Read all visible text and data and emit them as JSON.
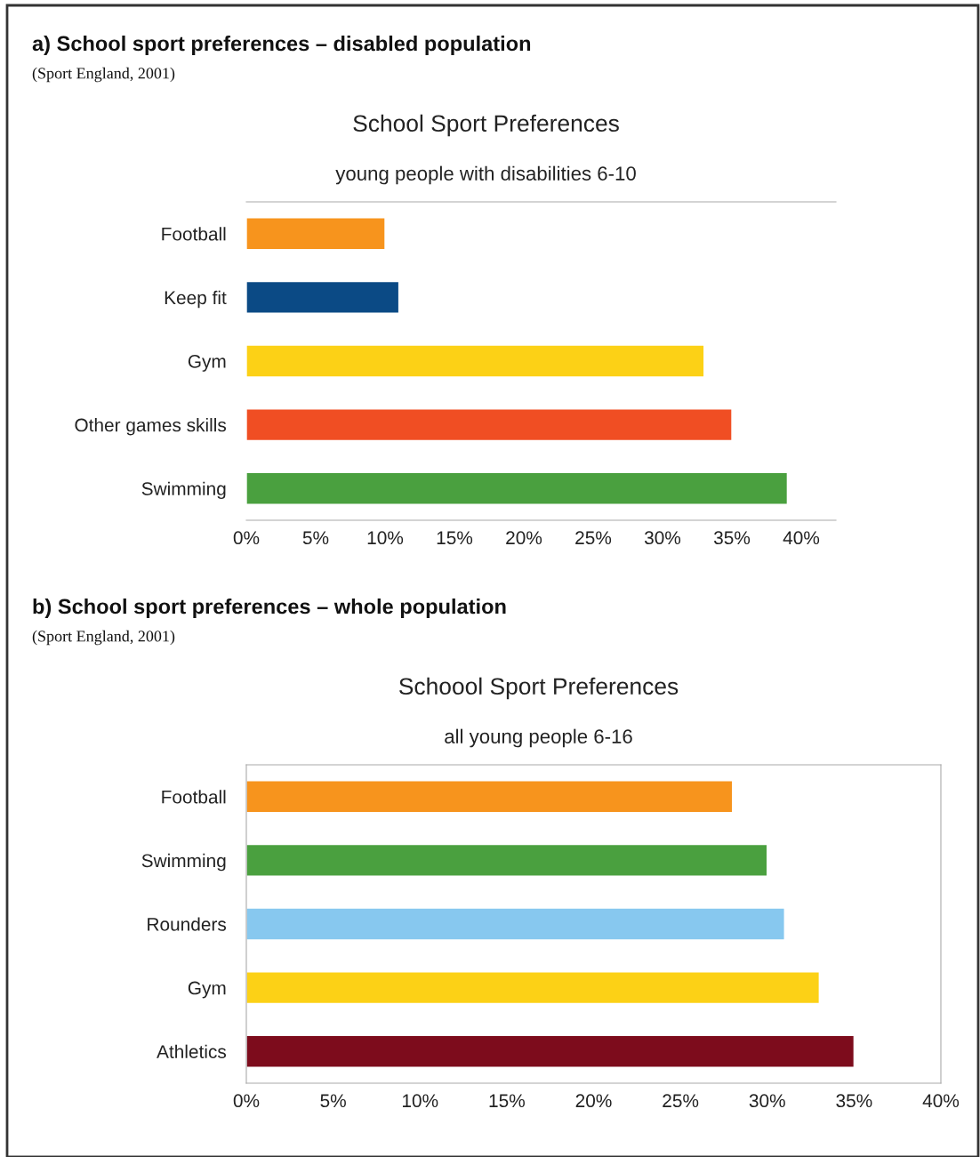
{
  "chart_data": [
    {
      "type": "bar",
      "orientation": "horizontal",
      "title": "School Sport Preferences",
      "subtitle": "young people with disabilities 6-10",
      "annotations": [
        "a) School sport preferences – disabled population",
        "(Sport England, 2001)"
      ],
      "categories": [
        "Football",
        "Keep fit",
        "Gym",
        "Other games skills",
        "Swimming"
      ],
      "values": [
        10,
        11,
        33,
        35,
        39
      ],
      "colors": [
        "#f7941d",
        "#0b4a85",
        "#fcd116",
        "#f04e23",
        "#4aa03f"
      ],
      "xlim": [
        0,
        42.5
      ],
      "xticks": [
        {
          "value": 0,
          "label": "0%"
        },
        {
          "value": 5,
          "label": "5%"
        },
        {
          "value": 10,
          "label": "10%"
        },
        {
          "value": 15,
          "label": "15%"
        },
        {
          "value": 20,
          "label": "20%"
        },
        {
          "value": 25,
          "label": "25%"
        },
        {
          "value": 30,
          "label": "30%"
        },
        {
          "value": 35,
          "label": "35%"
        },
        {
          "value": 40,
          "label": "40%"
        }
      ],
      "grid": false,
      "legend": false
    },
    {
      "type": "bar",
      "orientation": "horizontal",
      "title": "Schoool Sport Preferences",
      "subtitle": "all young people 6-16",
      "annotations": [
        "b) School sport preferences – whole population",
        "(Sport England, 2001)"
      ],
      "categories": [
        "Football",
        "Swimming",
        "Rounders",
        "Gym",
        "Athletics"
      ],
      "values": [
        28,
        30,
        31,
        33,
        35
      ],
      "colors": [
        "#f7941d",
        "#4aa03f",
        "#87c8ef",
        "#fcd116",
        "#7d0c1c"
      ],
      "xlim": [
        0,
        40
      ],
      "xticks": [
        {
          "value": 0,
          "label": "0%"
        },
        {
          "value": 5,
          "label": "5%"
        },
        {
          "value": 10,
          "label": "10%"
        },
        {
          "value": 15,
          "label": "15%"
        },
        {
          "value": 20,
          "label": "20%"
        },
        {
          "value": 25,
          "label": "25%"
        },
        {
          "value": 30,
          "label": "30%"
        },
        {
          "value": 35,
          "label": "35%"
        },
        {
          "value": 40,
          "label": "40%"
        }
      ],
      "grid": false,
      "legend": false
    }
  ]
}
